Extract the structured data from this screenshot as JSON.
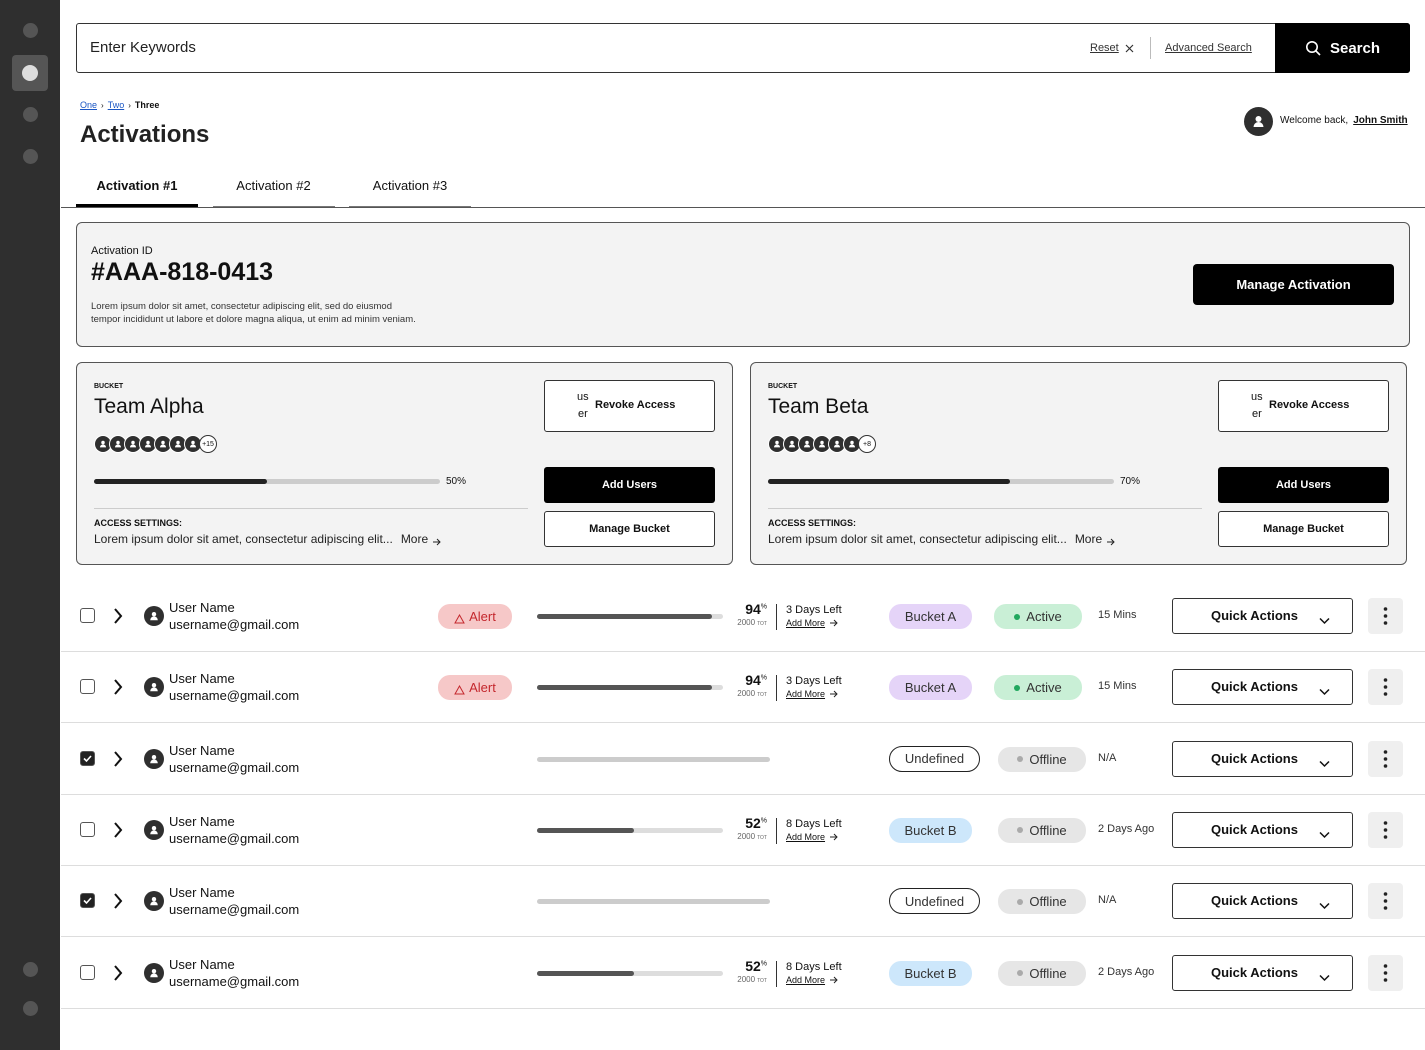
{
  "search": {
    "placeholder": "Enter Keywords",
    "reset": "Reset",
    "advanced_search": "Advanced Search",
    "button": "Search"
  },
  "breadcrumb": [
    "One",
    "Two",
    "Three"
  ],
  "title": "Activations",
  "user": {
    "greeting": "Welcome back,",
    "name": "John Smith"
  },
  "tabs": {
    "items": [
      "Activation #1",
      "Activation #2",
      "Activation #3"
    ],
    "active": 0
  },
  "activation": {
    "label": "Activation ID",
    "id": "#AAA-818-0413",
    "description": [
      "Lorem ipsum dolor sit amet, consectetur adipiscing elit, sed do eiusmod",
      "tempor incididunt ut labore et dolore magna aliqua, ut enim ad minim veniam."
    ],
    "button": "Manage Activation"
  },
  "buckets": [
    {
      "kicker": "BUCKET",
      "name": "Team Alpha",
      "avatars": 7,
      "more_users": "+15",
      "progress": 50,
      "progress_label": "50%",
      "settings_label": "ACCESS SETTINGS:",
      "settings_text": "Lorem ipsum dolor sit amet, consectetur adipiscing elit...",
      "more": "More",
      "revoke_icon": [
        "us",
        "er"
      ],
      "revoke": "Revoke Access",
      "add_users": "Add Users",
      "manage": "Manage Bucket"
    },
    {
      "kicker": "BUCKET",
      "name": "Team Beta",
      "avatars": 6,
      "more_users": "+8",
      "progress": 70,
      "progress_label": "70%",
      "settings_label": "ACCESS SETTINGS:",
      "settings_text": "Lorem ipsum dolor sit amet, consectetur adipiscing elit...",
      "more": "More",
      "revoke_icon": [
        "us",
        "er"
      ],
      "revoke": "Revoke Access",
      "add_users": "Add Users",
      "manage": "Manage Bucket"
    }
  ],
  "rows": [
    {
      "checked": false,
      "name": "User Name",
      "email": "username@gmail.com",
      "alert": "Alert",
      "percent": 94,
      "percent_unit": "%",
      "total": "2000",
      "total_unit": "TOT",
      "days_left": "3 Days Left",
      "add_more": "Add More",
      "bucket": "Bucket A",
      "bucket_color": "#e5d4f8",
      "status": "Active",
      "status_active": true,
      "last_seen": "15 Mins",
      "action": "Quick Actions"
    },
    {
      "checked": false,
      "name": "User Name",
      "email": "username@gmail.com",
      "alert": "Alert",
      "percent": 94,
      "percent_unit": "%",
      "total": "2000",
      "total_unit": "TOT",
      "days_left": "3 Days Left",
      "add_more": "Add More",
      "bucket": "Bucket A",
      "bucket_color": "#e5d4f8",
      "status": "Active",
      "status_active": true,
      "last_seen": "15 Mins",
      "action": "Quick Actions"
    },
    {
      "checked": true,
      "name": "User Name",
      "email": "username@gmail.com",
      "bucket": "Undefined",
      "status": "Offline",
      "status_active": false,
      "last_seen": "N/A",
      "action": "Quick Actions"
    },
    {
      "checked": false,
      "name": "User Name",
      "email": "username@gmail.com",
      "percent": 52,
      "percent_unit": "%",
      "total": "2000",
      "total_unit": "TOT",
      "days_left": "8 Days Left",
      "add_more": "Add More",
      "bucket": "Bucket B",
      "bucket_color": "#cde7fb",
      "status": "Offline",
      "status_active": false,
      "last_seen": "2 Days Ago",
      "action": "Quick Actions"
    },
    {
      "checked": true,
      "name": "User Name",
      "email": "username@gmail.com",
      "bucket": "Undefined",
      "status": "Offline",
      "status_active": false,
      "last_seen": "N/A",
      "action": "Quick Actions"
    },
    {
      "checked": false,
      "name": "User Name",
      "email": "username@gmail.com",
      "percent": 52,
      "percent_unit": "%",
      "total": "2000",
      "total_unit": "TOT",
      "days_left": "8 Days Left",
      "add_more": "Add More",
      "bucket": "Bucket B",
      "bucket_color": "#cde7fb",
      "status": "Offline",
      "status_active": false,
      "last_seen": "2 Days Ago",
      "action": "Quick Actions"
    }
  ]
}
